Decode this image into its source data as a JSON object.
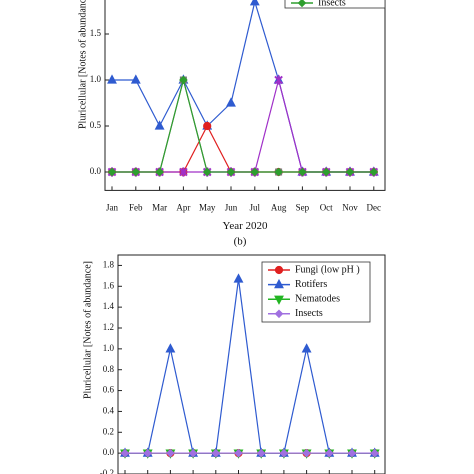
{
  "chart_data": [
    {
      "type": "line",
      "ylabel": "Pluricellular [Notes of abundance]",
      "xlabel": "Year 2020",
      "categories": [
        "Jan",
        "Feb",
        "Mar",
        "Apr",
        "May",
        "Jun",
        "Jul",
        "Aug",
        "Sep",
        "Oct",
        "Nov",
        "Dec"
      ],
      "ylim": [
        -0.2,
        2.0
      ],
      "yticks": [
        {
          "value": 0,
          "label": "0.0"
        },
        {
          "value": 0.5,
          "label": "0.5"
        },
        {
          "value": 1,
          "label": "1.0"
        },
        {
          "value": 1.5,
          "label": "1.5"
        }
      ],
      "series": [
        {
          "color": "#2f5bd0",
          "marker": "triangle",
          "values": [
            1,
            1,
            0.5,
            1,
            0.5,
            0.75,
            1.85,
            1,
            0,
            0,
            0,
            0
          ]
        },
        {
          "color": "#e02020",
          "marker": "circle",
          "values": [
            0,
            0,
            0,
            0,
            0.5,
            0,
            0,
            0,
            0,
            0,
            0,
            0
          ]
        },
        {
          "color": "#7a7a7a",
          "marker": "square",
          "values": [
            0,
            0,
            0,
            1,
            0,
            0,
            0,
            0,
            0,
            0,
            0,
            0
          ]
        },
        {
          "color": "#a030c8",
          "marker": "cross",
          "values": [
            0,
            0,
            0,
            0,
            0,
            0,
            0,
            1,
            0,
            0,
            0,
            0
          ]
        },
        {
          "name": "Insects",
          "color": "#2e9e2e",
          "marker": "diamond",
          "values": [
            0,
            0,
            0,
            1,
            0,
            0,
            0,
            0,
            0,
            0,
            0,
            0
          ]
        }
      ]
    },
    {
      "type": "line",
      "ylabel": "Pluricellular [Notes of abundance]",
      "categories": [
        null,
        null,
        null,
        null,
        null,
        null,
        null,
        null,
        null,
        null,
        null,
        null
      ],
      "ylim": [
        -0.2,
        1.9
      ],
      "yticks": [
        {
          "value": -0.2,
          "label": "-0.2"
        },
        {
          "value": 0,
          "label": "0.0"
        },
        {
          "value": 0.2,
          "label": "0.2"
        },
        {
          "value": 0.4,
          "label": "0.4"
        },
        {
          "value": 0.6,
          "label": "0.6"
        },
        {
          "value": 0.8,
          "label": "0.8"
        },
        {
          "value": 1,
          "label": "1.0"
        },
        {
          "value": 1.2,
          "label": "1.2"
        },
        {
          "value": 1.4,
          "label": "1.4"
        },
        {
          "value": 1.6,
          "label": "1.6"
        },
        {
          "value": 1.8,
          "label": "1.8"
        }
      ],
      "series": [
        {
          "name": "Fungi (low pH )",
          "color": "#e02020",
          "marker": "circle",
          "values": [
            0,
            0,
            0,
            0,
            0,
            0,
            0,
            0,
            0,
            0,
            0,
            0
          ]
        },
        {
          "name": "Rotifers",
          "color": "#2f5bd0",
          "marker": "triangle",
          "values": [
            0,
            0,
            1,
            0,
            0,
            1.67,
            0,
            0,
            1,
            0,
            0,
            0
          ]
        },
        {
          "name": "Nematodes",
          "color": "#22b522",
          "marker": "tridown",
          "values": [
            0,
            0,
            0,
            0,
            0,
            0,
            0,
            0,
            0,
            0,
            0,
            0
          ]
        },
        {
          "name": "Insects",
          "color": "#a070e0",
          "marker": "diamond",
          "values": [
            0,
            0,
            0,
            0,
            0,
            0,
            0,
            0,
            0,
            0,
            0,
            0
          ]
        }
      ]
    }
  ],
  "caption": "(b)"
}
